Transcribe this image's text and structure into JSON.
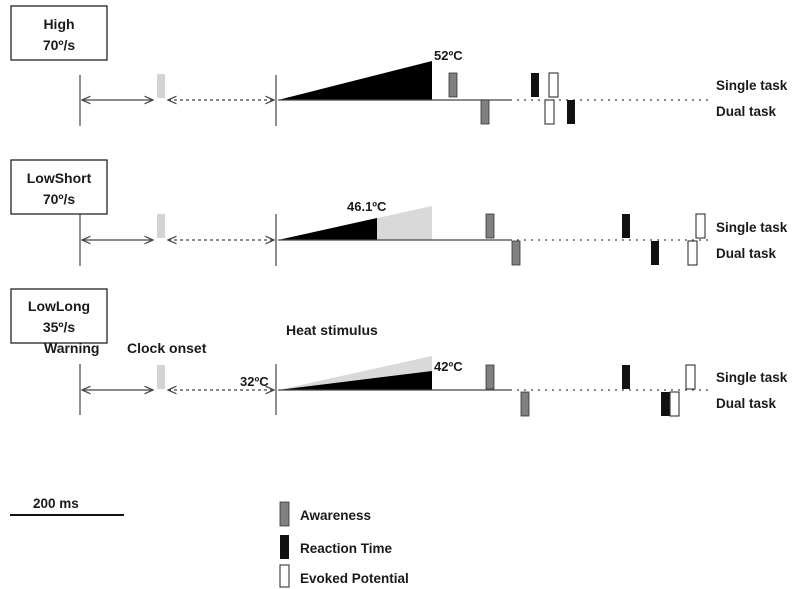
{
  "conditions": [
    {
      "name": "High",
      "rate": "70º/s",
      "peak_label": "52ºC",
      "start_label": "",
      "event_label": "",
      "onset_label": "",
      "clock_label": ""
    },
    {
      "name": "LowShort",
      "rate": "70º/s",
      "peak_label": "46.1ºC",
      "start_label": "",
      "event_label": "",
      "onset_label": "",
      "clock_label": ""
    },
    {
      "name": "LowLong",
      "rate": "35º/s",
      "peak_label": "42ºC",
      "start_label": "32ºC",
      "event_label": "Heat stimulus",
      "onset_label": "Warning",
      "clock_label": "Clock onset"
    }
  ],
  "tracks": {
    "single": "Single task",
    "dual": "Dual task"
  },
  "scale_bar": {
    "label": "200 ms"
  },
  "legend": [
    {
      "label": "Awareness",
      "color": "#808080"
    },
    {
      "label": "Reaction Time",
      "color": "#111111"
    },
    {
      "label": "Evoked Potential",
      "color": "#ffffff"
    }
  ],
  "colors": {
    "line": "#444444",
    "ramp_dark": "#000000",
    "ramp_light": "#d9d9d9",
    "clock": "#d4d4d4"
  }
}
